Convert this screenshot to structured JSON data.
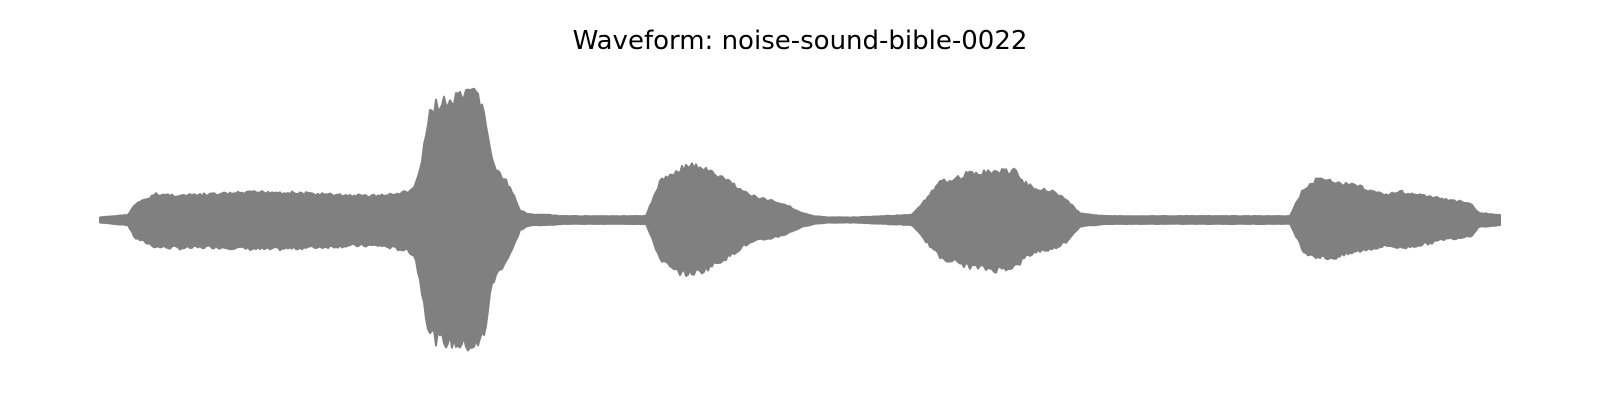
{
  "chart_data": {
    "type": "area",
    "title": "Waveform: noise-sound-bible-0022",
    "xlabel": "",
    "ylabel": "",
    "axes_visible": false,
    "grid": false,
    "ylim": [
      -1,
      1
    ],
    "xlim": [
      0,
      1
    ],
    "color": "#808080",
    "series": [
      {
        "x": [
          0.0,
          0.01,
          0.02,
          0.025,
          0.04,
          0.06,
          0.08,
          0.1,
          0.12,
          0.14,
          0.16,
          0.18,
          0.2,
          0.21,
          0.22,
          0.225,
          0.23,
          0.235,
          0.24,
          0.25,
          0.26,
          0.27,
          0.275,
          0.28,
          0.285,
          0.29,
          0.295,
          0.3,
          0.305,
          0.31,
          0.32,
          0.33,
          0.34,
          0.35,
          0.36,
          0.37,
          0.38,
          0.39,
          0.4,
          0.41,
          0.42,
          0.43,
          0.44,
          0.45,
          0.46,
          0.47,
          0.48,
          0.49,
          0.5,
          0.51,
          0.52,
          0.54,
          0.56,
          0.58,
          0.6,
          0.62,
          0.64,
          0.655,
          0.66,
          0.67,
          0.68,
          0.69,
          0.7,
          0.71,
          0.72,
          0.73,
          0.74,
          0.75,
          0.77,
          0.79,
          0.81,
          0.83,
          0.85,
          0.86,
          0.87,
          0.88,
          0.89,
          0.9,
          0.91,
          0.92,
          0.93,
          0.94,
          0.95,
          0.96,
          0.97,
          0.98,
          0.985,
          0.99,
          1.0
        ],
        "upper": [
          0.02,
          0.03,
          0.04,
          0.12,
          0.2,
          0.19,
          0.2,
          0.21,
          0.22,
          0.21,
          0.2,
          0.19,
          0.19,
          0.2,
          0.22,
          0.26,
          0.46,
          0.81,
          0.91,
          0.92,
          0.97,
          0.99,
          0.82,
          0.46,
          0.36,
          0.3,
          0.2,
          0.08,
          0.05,
          0.04,
          0.04,
          0.03,
          0.03,
          0.03,
          0.03,
          0.03,
          0.03,
          0.03,
          0.3,
          0.37,
          0.43,
          0.41,
          0.35,
          0.3,
          0.22,
          0.17,
          0.15,
          0.12,
          0.06,
          0.03,
          0.02,
          0.02,
          0.03,
          0.04,
          0.29,
          0.36,
          0.38,
          0.38,
          0.29,
          0.24,
          0.23,
          0.16,
          0.05,
          0.04,
          0.03,
          0.03,
          0.03,
          0.03,
          0.03,
          0.03,
          0.03,
          0.03,
          0.03,
          0.25,
          0.32,
          0.3,
          0.28,
          0.26,
          0.22,
          0.2,
          0.22,
          0.2,
          0.18,
          0.16,
          0.15,
          0.12,
          0.05,
          0.05,
          0.04
        ],
        "lower": [
          -0.02,
          -0.03,
          -0.04,
          -0.14,
          -0.21,
          -0.22,
          -0.21,
          -0.22,
          -0.23,
          -0.22,
          -0.21,
          -0.2,
          -0.2,
          -0.22,
          -0.24,
          -0.28,
          -0.56,
          -0.86,
          -0.93,
          -0.96,
          -0.98,
          -0.99,
          -0.86,
          -0.5,
          -0.4,
          -0.32,
          -0.22,
          -0.08,
          -0.05,
          -0.04,
          -0.04,
          -0.03,
          -0.03,
          -0.03,
          -0.03,
          -0.03,
          -0.03,
          -0.03,
          -0.3,
          -0.4,
          -0.42,
          -0.4,
          -0.34,
          -0.28,
          -0.2,
          -0.16,
          -0.14,
          -0.11,
          -0.06,
          -0.03,
          -0.02,
          -0.02,
          -0.03,
          -0.04,
          -0.29,
          -0.36,
          -0.39,
          -0.36,
          -0.3,
          -0.24,
          -0.23,
          -0.17,
          -0.05,
          -0.04,
          -0.03,
          -0.03,
          -0.03,
          -0.03,
          -0.03,
          -0.03,
          -0.03,
          -0.03,
          -0.03,
          -0.25,
          -0.29,
          -0.3,
          -0.27,
          -0.24,
          -0.22,
          -0.2,
          -0.22,
          -0.2,
          -0.18,
          -0.15,
          -0.14,
          -0.12,
          -0.05,
          -0.05,
          -0.04
        ]
      }
    ]
  }
}
